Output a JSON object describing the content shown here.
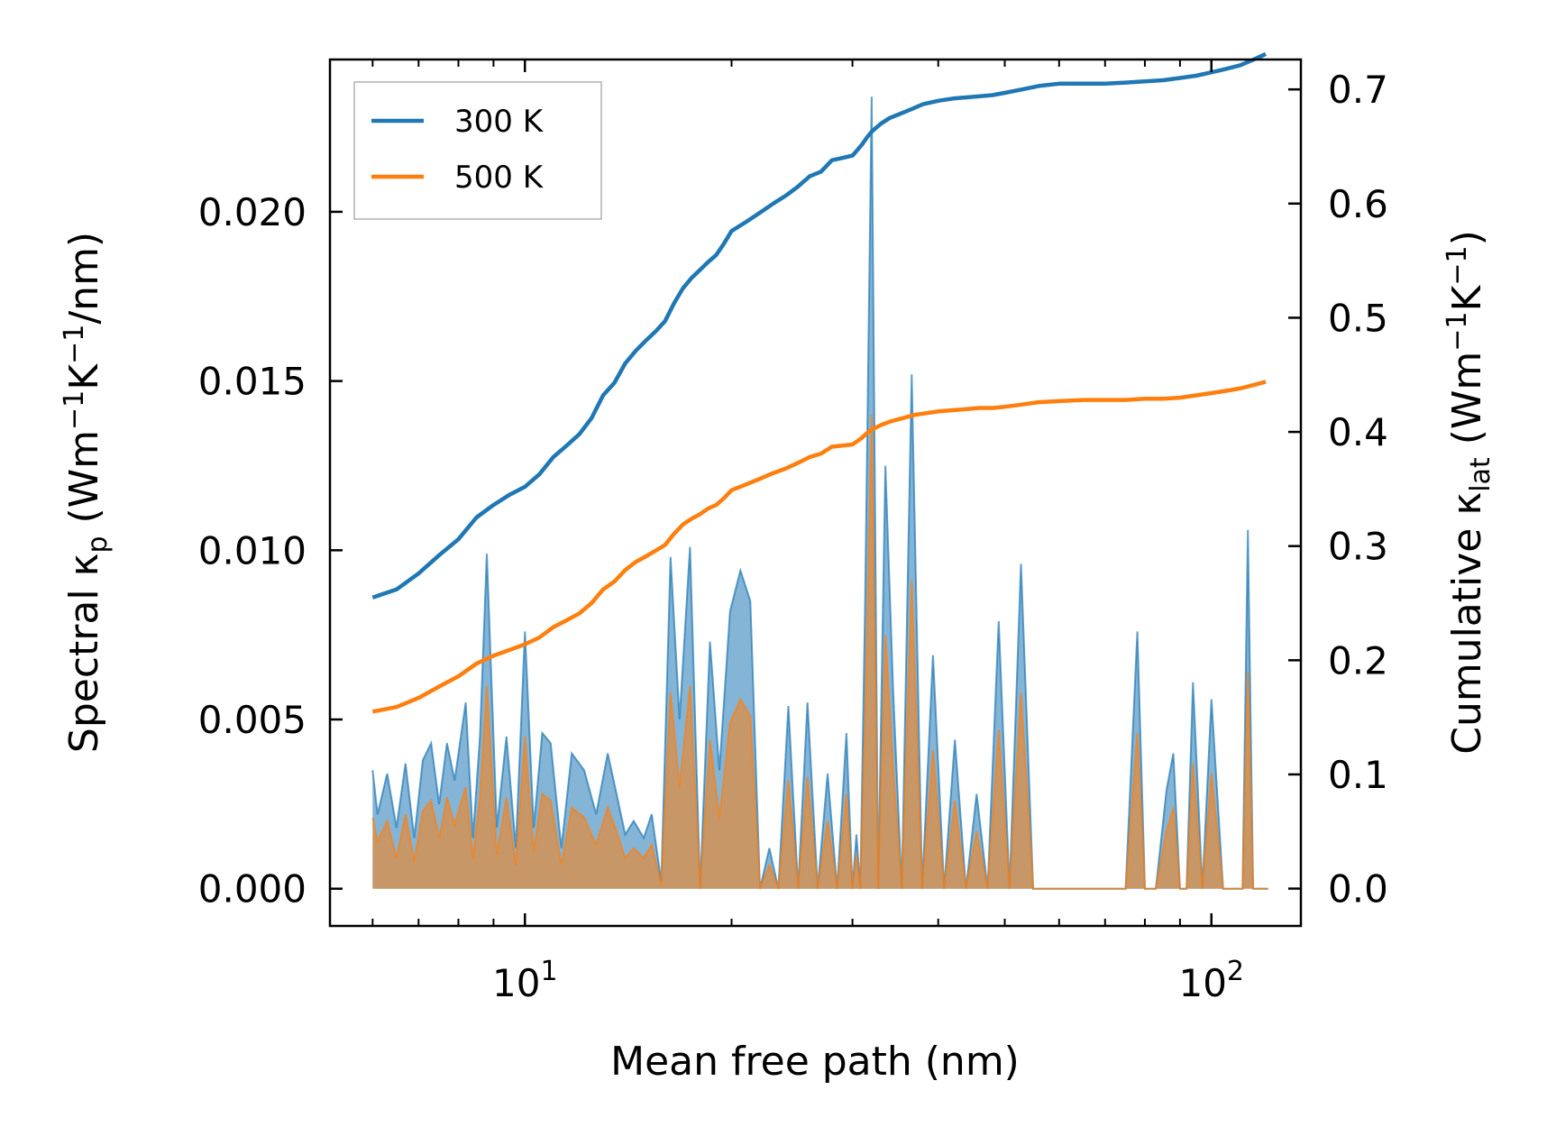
{
  "chart_data": {
    "type": "line",
    "xscale": "log",
    "xlim": [
      5.2,
      135
    ],
    "xlabel": "Mean free path (nm)",
    "ylabel_left": "Spectral κp (Wm⁻¹K⁻¹/nm)",
    "ylabel_right": "Cumulative κlat (Wm⁻¹K⁻¹)",
    "ylim_left": [
      -0.0011,
      0.0245
    ],
    "ylim_right": [
      -0.0327,
      0.7262
    ],
    "x_ticks": [
      {
        "value": 10,
        "base": "10",
        "exp": "1"
      },
      {
        "value": 100,
        "base": "10",
        "exp": "2"
      }
    ],
    "y_ticks_left": [
      {
        "value": 0.0,
        "label": "0.000"
      },
      {
        "value": 0.005,
        "label": "0.005"
      },
      {
        "value": 0.01,
        "label": "0.010"
      },
      {
        "value": 0.015,
        "label": "0.015"
      },
      {
        "value": 0.02,
        "label": "0.020"
      }
    ],
    "y_ticks_right": [
      {
        "value": 0.0,
        "label": "0.0"
      },
      {
        "value": 0.1,
        "label": "0.1"
      },
      {
        "value": 0.2,
        "label": "0.2"
      },
      {
        "value": 0.3,
        "label": "0.3"
      },
      {
        "value": 0.4,
        "label": "0.4"
      },
      {
        "value": 0.5,
        "label": "0.5"
      },
      {
        "value": 0.6,
        "label": "0.6"
      },
      {
        "value": 0.7,
        "label": "0.7"
      }
    ],
    "legend": {
      "position": "top-left",
      "entries": [
        "300 K",
        "500 K"
      ]
    },
    "series": [
      {
        "name": "300 K",
        "color": "#1f77b4",
        "spectral": {
          "axis": "left",
          "x": [
            6.0,
            6.1,
            6.3,
            6.5,
            6.7,
            6.9,
            7.1,
            7.3,
            7.5,
            7.7,
            7.9,
            8.2,
            8.4,
            8.6,
            8.8,
            9.1,
            9.4,
            9.7,
            10.0,
            10.3,
            10.6,
            10.9,
            11.3,
            11.7,
            12.2,
            12.7,
            13.2,
            13.6,
            14.0,
            14.4,
            14.9,
            15.3,
            15.8,
            16.3,
            16.8,
            17.4,
            18.0,
            18.6,
            19.2,
            19.9,
            20.6,
            21.3,
            22.0,
            22.7,
            23.4,
            24.2,
            25.0,
            25.8,
            26.7,
            27.6,
            28.5,
            29.4,
            30.0,
            30.4,
            30.8,
            31.3,
            32.0,
            32.7,
            33.5,
            34.4,
            35.4,
            36.6,
            37.9,
            39.3,
            40.8,
            42.3,
            43.9,
            45.5,
            47.2,
            49.0,
            50.8,
            52.8,
            55.0,
            57.0,
            59.0,
            61.0,
            63.0,
            66.0,
            70.0,
            75.0,
            78.0,
            80.0,
            83.0,
            86.0,
            88.0,
            90.0,
            92.0,
            94.0,
            97.0,
            100.0,
            104.0,
            108.0,
            111.0,
            113.0,
            115.0,
            117.0,
            119.0,
            121.0
          ],
          "y": [
            0.0035,
            0.0022,
            0.0034,
            0.0018,
            0.0037,
            0.0015,
            0.0038,
            0.0043,
            0.0025,
            0.0043,
            0.0032,
            0.0055,
            0.0015,
            0.0045,
            0.0099,
            0.0018,
            0.0045,
            0.0012,
            0.0076,
            0.0018,
            0.0046,
            0.0043,
            0.0012,
            0.004,
            0.0035,
            0.0022,
            0.004,
            0.0028,
            0.0016,
            0.002,
            0.0015,
            0.0022,
            0.0002,
            0.0098,
            0.005,
            0.0101,
            0.0,
            0.0073,
            0.0035,
            0.0082,
            0.0094,
            0.0085,
            0.0,
            0.0012,
            0.0,
            0.0054,
            0.0,
            0.0055,
            0.0,
            0.0034,
            0.0,
            0.0046,
            0.0,
            0.0016,
            0.0,
            0.0084,
            0.0234,
            0.0,
            0.0125,
            0.0058,
            0.0,
            0.0152,
            0.0,
            0.0069,
            0.0,
            0.0044,
            0.0,
            0.0028,
            0.0,
            0.0079,
            0.0,
            0.0096,
            0.0,
            0.0,
            0.0,
            0.0,
            0.0,
            0.0,
            0.0,
            0.0,
            0.0076,
            0.0,
            0.0,
            0.0029,
            0.004,
            0.0,
            0.0,
            0.0061,
            0.0,
            0.0056,
            0.0,
            0.0,
            0.0,
            0.0106,
            0.0,
            0.0,
            0.0,
            0.0
          ]
        },
        "cumulative": {
          "axis": "right",
          "x": [
            6.0,
            6.5,
            7.0,
            7.5,
            8.0,
            8.5,
            9.0,
            9.5,
            10.0,
            10.5,
            11.0,
            11.5,
            12.0,
            12.5,
            13.0,
            13.5,
            14.0,
            14.5,
            15.0,
            15.5,
            16.0,
            16.5,
            17.0,
            17.5,
            18.0,
            18.5,
            19.0,
            19.5,
            20.0,
            21.0,
            22.0,
            23.0,
            24.0,
            25.0,
            26.0,
            27.0,
            28.0,
            29.0,
            30.0,
            30.5,
            31.0,
            31.5,
            32.0,
            33.0,
            34.0,
            35.0,
            36.0,
            37.0,
            38.0,
            40.0,
            42.0,
            44.0,
            46.0,
            48.0,
            50.0,
            53.0,
            56.0,
            60.0,
            65.0,
            70.0,
            75.0,
            80.0,
            85.0,
            90.0,
            95.0,
            100.0,
            105.0,
            110.0,
            115.0,
            120.0
          ],
          "y": [
            0.255,
            0.262,
            0.276,
            0.292,
            0.306,
            0.325,
            0.336,
            0.345,
            0.352,
            0.363,
            0.378,
            0.388,
            0.398,
            0.412,
            0.432,
            0.443,
            0.46,
            0.471,
            0.48,
            0.488,
            0.497,
            0.513,
            0.526,
            0.535,
            0.542,
            0.549,
            0.555,
            0.565,
            0.576,
            0.584,
            0.592,
            0.6,
            0.607,
            0.615,
            0.624,
            0.628,
            0.638,
            0.64,
            0.642,
            0.647,
            0.652,
            0.658,
            0.663,
            0.67,
            0.675,
            0.678,
            0.681,
            0.684,
            0.687,
            0.69,
            0.692,
            0.693,
            0.694,
            0.695,
            0.697,
            0.7,
            0.703,
            0.705,
            0.705,
            0.705,
            0.706,
            0.707,
            0.708,
            0.71,
            0.712,
            0.715,
            0.718,
            0.721,
            0.726,
            0.731
          ]
        }
      },
      {
        "name": "500 K",
        "color": "#ff7f0e",
        "spectral": {
          "axis": "left",
          "x": [
            6.0,
            6.1,
            6.3,
            6.5,
            6.7,
            6.9,
            7.1,
            7.3,
            7.5,
            7.7,
            7.9,
            8.2,
            8.4,
            8.6,
            8.8,
            9.1,
            9.4,
            9.7,
            10.0,
            10.3,
            10.6,
            10.9,
            11.3,
            11.7,
            12.2,
            12.7,
            13.2,
            13.6,
            14.0,
            14.4,
            14.9,
            15.3,
            15.8,
            16.3,
            16.8,
            17.4,
            18.0,
            18.6,
            19.2,
            19.9,
            20.6,
            21.3,
            22.0,
            22.7,
            23.4,
            24.2,
            25.0,
            25.8,
            26.7,
            27.6,
            28.5,
            29.4,
            30.0,
            30.4,
            30.8,
            31.3,
            32.0,
            32.7,
            33.5,
            34.4,
            35.4,
            36.6,
            37.9,
            39.3,
            40.8,
            42.3,
            43.9,
            45.5,
            47.2,
            49.0,
            50.8,
            52.8,
            55.0,
            57.0,
            59.0,
            61.0,
            63.0,
            66.0,
            70.0,
            75.0,
            78.0,
            80.0,
            83.0,
            86.0,
            88.0,
            90.0,
            92.0,
            94.0,
            97.0,
            100.0,
            104.0,
            108.0,
            111.0,
            113.0,
            115.0,
            117.0,
            119.0,
            121.0
          ],
          "y": [
            0.0021,
            0.0014,
            0.002,
            0.0009,
            0.0022,
            0.0008,
            0.0023,
            0.0026,
            0.0015,
            0.0027,
            0.0019,
            0.003,
            0.0009,
            0.0027,
            0.006,
            0.001,
            0.0027,
            0.0007,
            0.0045,
            0.0011,
            0.0028,
            0.0026,
            0.0007,
            0.0024,
            0.0021,
            0.0013,
            0.0024,
            0.0017,
            0.0009,
            0.0012,
            0.0009,
            0.0013,
            0.0001,
            0.0058,
            0.003,
            0.006,
            0.0,
            0.0044,
            0.0021,
            0.0049,
            0.0056,
            0.0051,
            0.0,
            0.0007,
            0.0,
            0.0032,
            0.0,
            0.0033,
            0.0,
            0.002,
            0.0,
            0.0028,
            0.0,
            0.001,
            0.0,
            0.005,
            0.014,
            0.0,
            0.0075,
            0.0035,
            0.0,
            0.0091,
            0.0,
            0.0041,
            0.0,
            0.0026,
            0.0,
            0.0017,
            0.0,
            0.0047,
            0.0,
            0.0058,
            0.0,
            0.0,
            0.0,
            0.0,
            0.0,
            0.0,
            0.0,
            0.0,
            0.0046,
            0.0,
            0.0,
            0.0017,
            0.0024,
            0.0,
            0.0,
            0.0037,
            0.0,
            0.0034,
            0.0,
            0.0,
            0.0,
            0.0064,
            0.0,
            0.0,
            0.0,
            0.0
          ]
        },
        "cumulative": {
          "axis": "right",
          "x": [
            6.0,
            6.5,
            7.0,
            7.5,
            8.0,
            8.5,
            9.0,
            9.5,
            10.0,
            10.5,
            11.0,
            11.5,
            12.0,
            12.5,
            13.0,
            13.5,
            14.0,
            14.5,
            15.0,
            15.5,
            16.0,
            16.5,
            17.0,
            17.5,
            18.0,
            18.5,
            19.0,
            19.5,
            20.0,
            21.0,
            22.0,
            23.0,
            24.0,
            25.0,
            26.0,
            27.0,
            28.0,
            29.0,
            30.0,
            30.5,
            31.0,
            31.5,
            32.0,
            33.0,
            34.0,
            35.0,
            36.0,
            37.0,
            38.0,
            40.0,
            42.0,
            44.0,
            46.0,
            48.0,
            50.0,
            53.0,
            56.0,
            60.0,
            65.0,
            70.0,
            75.0,
            80.0,
            85.0,
            90.0,
            95.0,
            100.0,
            105.0,
            110.0,
            115.0,
            120.0
          ],
          "y": [
            0.155,
            0.159,
            0.167,
            0.177,
            0.186,
            0.197,
            0.204,
            0.209,
            0.214,
            0.22,
            0.229,
            0.235,
            0.241,
            0.25,
            0.262,
            0.269,
            0.279,
            0.286,
            0.291,
            0.296,
            0.301,
            0.311,
            0.319,
            0.324,
            0.328,
            0.333,
            0.336,
            0.342,
            0.349,
            0.354,
            0.359,
            0.364,
            0.368,
            0.373,
            0.378,
            0.381,
            0.387,
            0.388,
            0.389,
            0.392,
            0.395,
            0.399,
            0.402,
            0.406,
            0.409,
            0.411,
            0.413,
            0.415,
            0.416,
            0.418,
            0.419,
            0.42,
            0.421,
            0.421,
            0.422,
            0.424,
            0.426,
            0.427,
            0.428,
            0.428,
            0.428,
            0.429,
            0.429,
            0.43,
            0.432,
            0.434,
            0.436,
            0.438,
            0.441,
            0.444
          ]
        }
      }
    ]
  }
}
